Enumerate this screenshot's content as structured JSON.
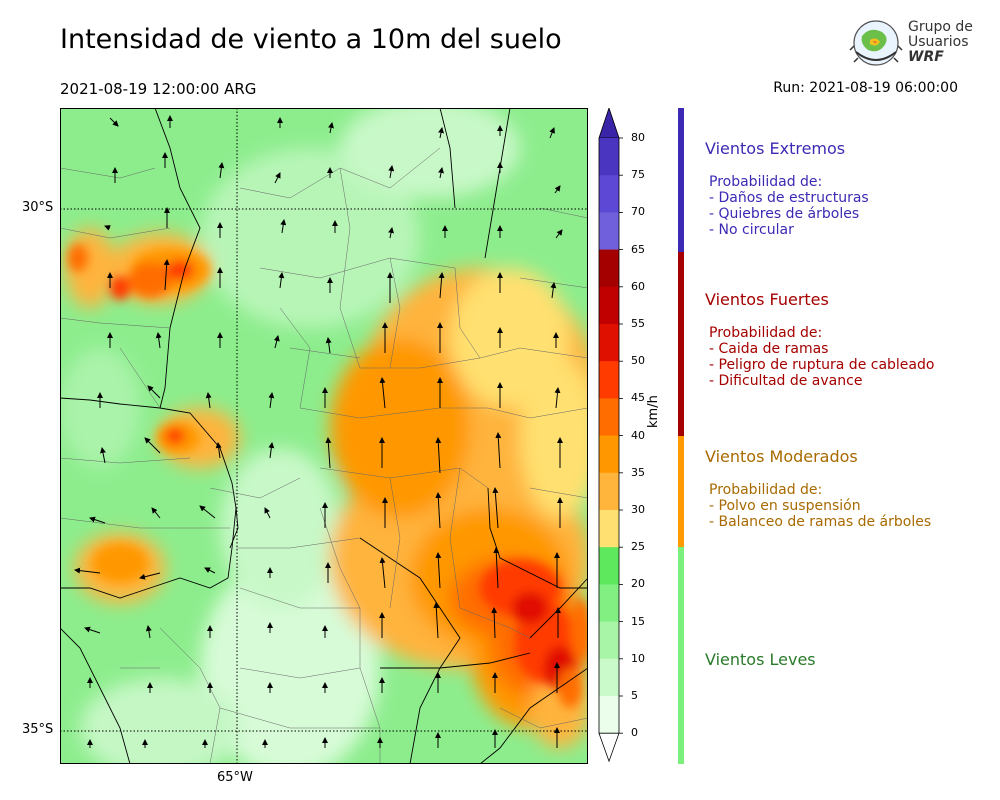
{
  "header": {
    "title": "Intensidad de viento a 10m del suelo",
    "valid_time": "2021-08-19 12:00:00 ARG",
    "run": "Run: 2021-08-19 06:00:00"
  },
  "logo": {
    "line1": "Grupo de",
    "line2": "Usuarios",
    "line3": "WRF"
  },
  "map": {
    "lat_labels": [
      "30°S",
      "35°S"
    ],
    "lon_labels": [
      "65°W"
    ]
  },
  "colorbar": {
    "unit": "km/h",
    "ticks": [
      "80",
      "75",
      "70",
      "65",
      "60",
      "55",
      "50",
      "45",
      "40",
      "35",
      "30",
      "25",
      "20",
      "15",
      "10",
      "5",
      "0"
    ],
    "colors": [
      "#3a24a8",
      "#4a35c0",
      "#5c48d4",
      "#7060dc",
      "#a40000",
      "#c00000",
      "#e01000",
      "#ff3b00",
      "#ff6d00",
      "#ff9800",
      "#ffb43c",
      "#ffe070",
      "#5de85d",
      "#82ef82",
      "#a8f5a8",
      "#cafaca",
      "#ebfeeb"
    ]
  },
  "categories": [
    {
      "title": "Vientos Extremos",
      "color": "#3c2ab4",
      "bar": "#3c2ab4",
      "desc": [
        "Probabilidad de:",
        "- Daños de estructuras",
        "- Quiebres de árboles",
        "- No circular"
      ]
    },
    {
      "title": "Vientos Fuertes",
      "color": "#a50000",
      "bar": "#a50000",
      "desc": [
        "Probabilidad de:",
        "- Caida de ramas",
        "- Peligro de ruptura de cableado",
        "- Dificultad de avance"
      ]
    },
    {
      "title": "Vientos Moderados",
      "color": "#a86a00",
      "bar": "#ff9a00",
      "desc": [
        "Probabilidad de:",
        "- Polvo en suspensión",
        "- Balanceo de ramas de árboles"
      ]
    },
    {
      "title": "Vientos Leves",
      "color": "#2a7a2a",
      "bar": "#7cf07c",
      "desc": []
    }
  ]
}
